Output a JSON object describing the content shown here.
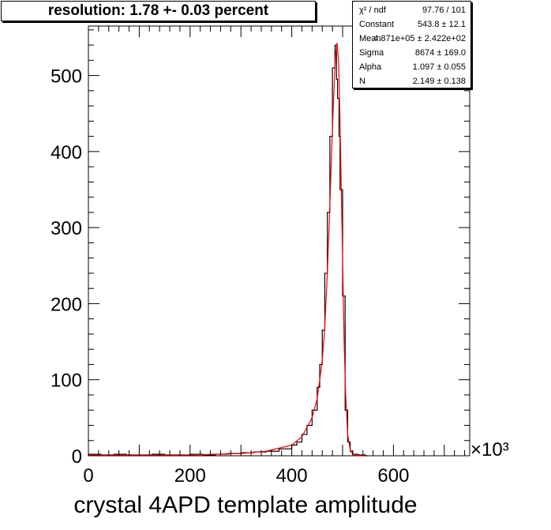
{
  "title": "resolution: 1.78 +- 0.03 percent",
  "stats": [
    {
      "label": "χ² / ndf",
      "value": "97.76 / 101"
    },
    {
      "label": "Constant",
      "value": "543.8 ± 12.1"
    },
    {
      "label": "Mean",
      "value": "4.871e+05 ± 2.422e+02"
    },
    {
      "label": "Sigma",
      "value": "8674 ± 169.0"
    },
    {
      "label": "Alpha",
      "value": "1.097 ± 0.055"
    },
    {
      "label": "N",
      "value": "2.149 ± 0.138"
    }
  ],
  "chart_data": {
    "type": "histogram",
    "xlabel": "crystal 4APD template amplitude",
    "x_multiplier": "×10³",
    "xlim": [
      0,
      750
    ],
    "ylim": [
      0,
      565
    ],
    "x_ticks": [
      0,
      200,
      400,
      600
    ],
    "y_ticks": [
      0,
      100,
      200,
      300,
      400,
      500
    ],
    "grid": false,
    "histogram": {
      "x": [
        0,
        25,
        50,
        75,
        100,
        125,
        150,
        175,
        200,
        225,
        250,
        275,
        300,
        325,
        350,
        375,
        400,
        410,
        420,
        430,
        440,
        450,
        455,
        460,
        465,
        470,
        475,
        480,
        485,
        488,
        490,
        493,
        495,
        500,
        505,
        510,
        515,
        520,
        530,
        545
      ],
      "counts": [
        2,
        1,
        2,
        1,
        1,
        2,
        1,
        1,
        2,
        1,
        2,
        3,
        4,
        5,
        6,
        9,
        14,
        18,
        28,
        40,
        60,
        90,
        120,
        165,
        240,
        320,
        420,
        510,
        540,
        495,
        470,
        420,
        350,
        210,
        60,
        18,
        6,
        2,
        1,
        0
      ]
    },
    "fit": {
      "color": "#ff0000",
      "x": [
        0,
        100,
        200,
        300,
        350,
        400,
        420,
        440,
        450,
        460,
        465,
        470,
        475,
        480,
        483,
        486,
        489,
        492,
        495,
        498,
        500,
        503,
        506,
        510,
        515,
        520,
        530,
        545
      ],
      "y": [
        1,
        1,
        1,
        3,
        6,
        14,
        25,
        50,
        75,
        125,
        170,
        240,
        330,
        430,
        480,
        525,
        543,
        520,
        440,
        330,
        260,
        150,
        80,
        28,
        8,
        2,
        0,
        0
      ]
    }
  }
}
